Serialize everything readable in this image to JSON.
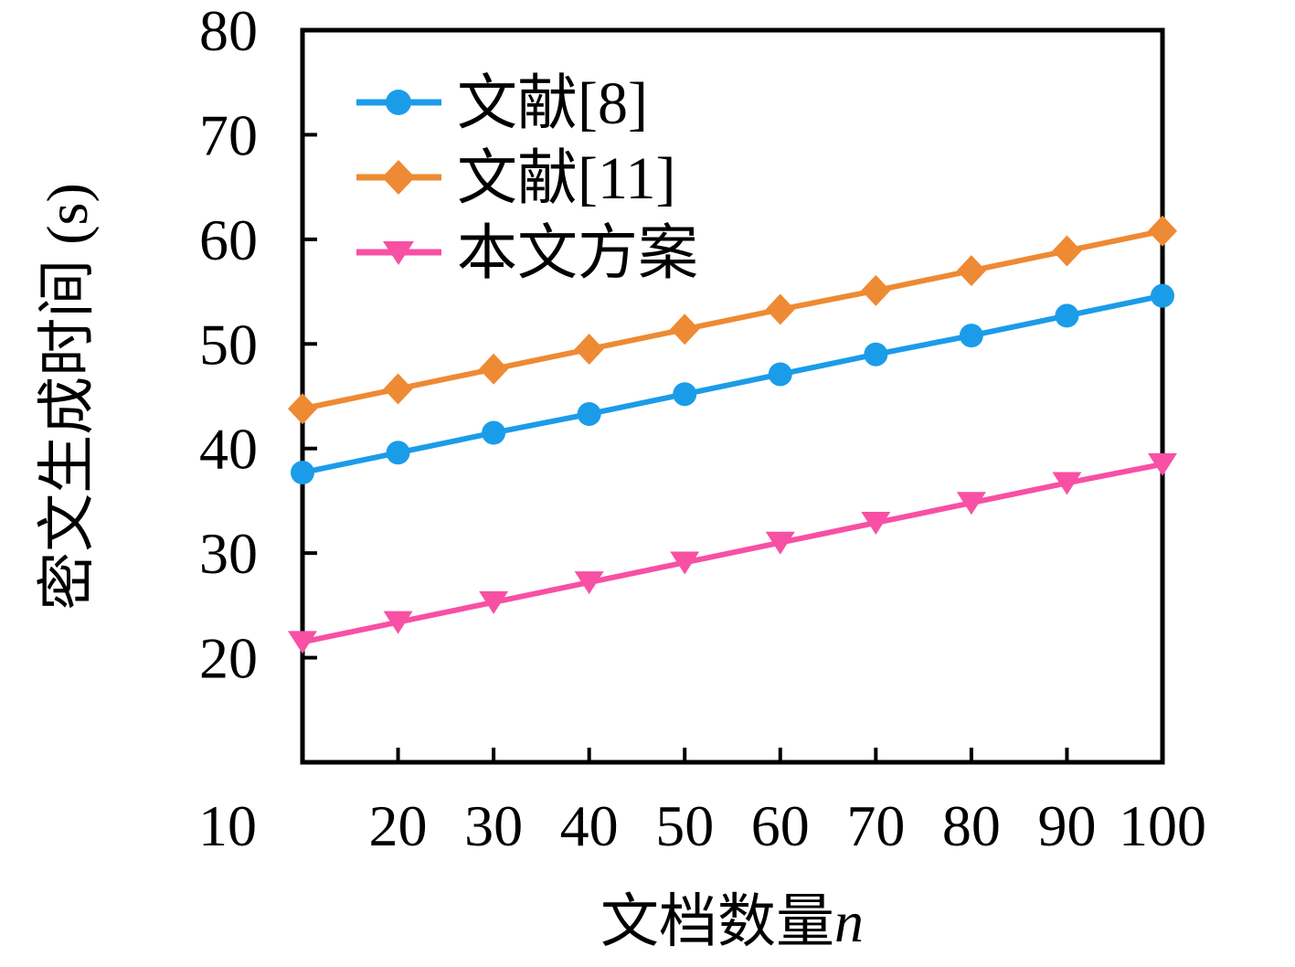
{
  "page": {
    "background": "#ffffff"
  },
  "chart_data": {
    "type": "line",
    "title": "",
    "xlabel": "文档数量n",
    "xlabel_cjk": "文档数量",
    "xlabel_var": "n",
    "ylabel": "密文生成时间 (s)",
    "x": [
      10,
      20,
      30,
      40,
      50,
      60,
      70,
      80,
      90,
      100
    ],
    "x_tick_labels": [
      "10",
      "20",
      "30",
      "40",
      "50",
      "60",
      "70",
      "80",
      "90",
      "100"
    ],
    "y_ticks": [
      20,
      30,
      40,
      50,
      60,
      70,
      80
    ],
    "xlim": [
      10,
      100
    ],
    "ylim": [
      10,
      80
    ],
    "grid": false,
    "legend_position": "upper-left-inside",
    "axis_color": "#000000",
    "background_color": "#ffffff",
    "series": [
      {
        "name": "文献[8]",
        "color": "#1B9CE9",
        "marker": "circle",
        "values": [
          37.7,
          39.6,
          41.5,
          43.3,
          45.2,
          47.1,
          49.0,
          50.8,
          52.7,
          54.6
        ]
      },
      {
        "name": "文献[11]",
        "color": "#EE8A33",
        "marker": "diamond",
        "values": [
          43.8,
          45.7,
          47.6,
          49.5,
          51.4,
          53.3,
          55.1,
          57.0,
          58.9,
          60.8
        ]
      },
      {
        "name": "本文方案",
        "color": "#F750A4",
        "marker": "triangle-down",
        "values": [
          21.5,
          23.4,
          25.3,
          27.2,
          29.1,
          31.0,
          32.9,
          34.8,
          36.7,
          38.5
        ]
      }
    ]
  }
}
